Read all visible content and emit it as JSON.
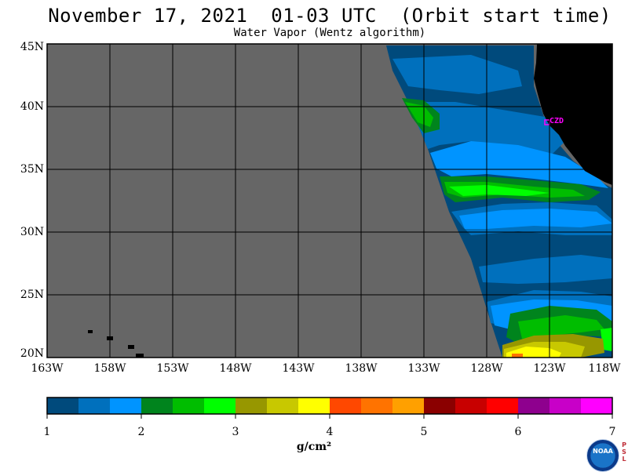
{
  "header": {
    "title": "November 17, 2021  01-03 UTC  (Orbit start time)",
    "subtitle": "Water Vapor (Wentz algorithm)"
  },
  "map": {
    "lat_labels": [
      "45N",
      "40N",
      "35N",
      "30N",
      "25N",
      "20N"
    ],
    "lon_labels": [
      "163W",
      "158W",
      "153W",
      "148W",
      "143W",
      "138W",
      "133W",
      "128W",
      "123W",
      "118W"
    ],
    "station_label": "CZD",
    "colors": {
      "no_data": "#666666",
      "land": "#000000",
      "station": "#ff00ff"
    }
  },
  "colorbar": {
    "units": "g/cm²",
    "labels": [
      "1",
      "2",
      "3",
      "4",
      "5",
      "6",
      "7"
    ],
    "colors": [
      "#004a7c",
      "#0070bd",
      "#0094ff",
      "#00841d",
      "#00bd00",
      "#00ff00",
      "#979700",
      "#c8c800",
      "#ffff00",
      "#ff4800",
      "#ff7300",
      "#ffa000",
      "#8b0000",
      "#c80000",
      "#ff0000",
      "#8e008e",
      "#c800c8",
      "#ff00ff"
    ]
  },
  "logos": {
    "noaa": "NOAA",
    "psl": [
      "P",
      "S",
      "L"
    ]
  }
}
